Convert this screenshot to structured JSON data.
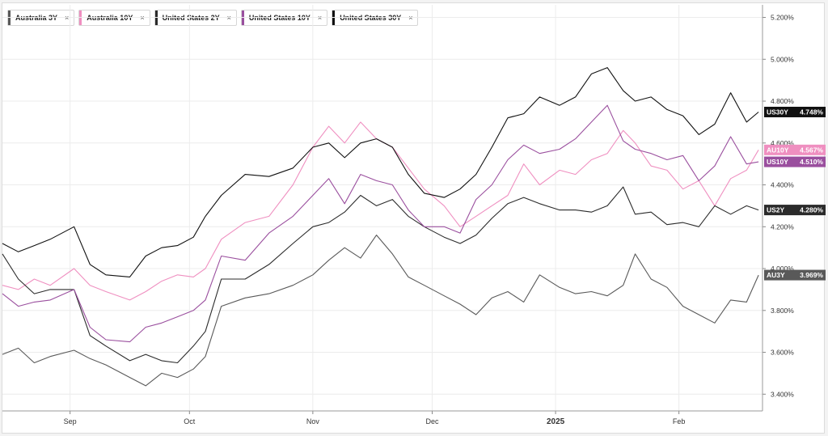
{
  "chart_data": {
    "type": "line",
    "title": "",
    "xlabel": "",
    "ylabel": "",
    "x_ticks": [
      {
        "label": "Sep",
        "date": "2024-09-01"
      },
      {
        "label": "Oct",
        "date": "2024-10-01"
      },
      {
        "label": "Nov",
        "date": "2024-11-01"
      },
      {
        "label": "Dec",
        "date": "2024-12-01"
      },
      {
        "label": "2025",
        "date": "2025-01-01"
      },
      {
        "label": "Feb",
        "date": "2025-02-01"
      }
    ],
    "x_range": [
      "2024-08-15",
      "2025-02-22"
    ],
    "y_ticks": [
      "3.400%",
      "3.600%",
      "3.800%",
      "4.000%",
      "4.200%",
      "4.400%",
      "4.600%",
      "4.800%",
      "5.000%",
      "5.200%"
    ],
    "ylim": [
      3.32,
      5.26
    ],
    "grid": true,
    "y_axis_side": "right",
    "legend_position": "top-left",
    "series": [
      {
        "name": "Australia 3Y",
        "tag": "AU3Y",
        "last": "3.969%",
        "color": "#595959",
        "points": [
          [
            "2024-08-15",
            3.59
          ],
          [
            "2024-08-19",
            3.62
          ],
          [
            "2024-08-23",
            3.55
          ],
          [
            "2024-08-27",
            3.58
          ],
          [
            "2024-09-02",
            3.61
          ],
          [
            "2024-09-06",
            3.57
          ],
          [
            "2024-09-10",
            3.54
          ],
          [
            "2024-09-16",
            3.48
          ],
          [
            "2024-09-20",
            3.44
          ],
          [
            "2024-09-24",
            3.5
          ],
          [
            "2024-09-28",
            3.48
          ],
          [
            "2024-10-02",
            3.52
          ],
          [
            "2024-10-05",
            3.58
          ],
          [
            "2024-10-09",
            3.82
          ],
          [
            "2024-10-15",
            3.86
          ],
          [
            "2024-10-21",
            3.88
          ],
          [
            "2024-10-27",
            3.92
          ],
          [
            "2024-11-01",
            3.97
          ],
          [
            "2024-11-05",
            4.04
          ],
          [
            "2024-11-09",
            4.1
          ],
          [
            "2024-11-13",
            4.05
          ],
          [
            "2024-11-17",
            4.16
          ],
          [
            "2024-11-21",
            4.07
          ],
          [
            "2024-11-25",
            3.96
          ],
          [
            "2024-11-29",
            3.92
          ],
          [
            "2024-12-04",
            3.87
          ],
          [
            "2024-12-08",
            3.83
          ],
          [
            "2024-12-12",
            3.78
          ],
          [
            "2024-12-16",
            3.86
          ],
          [
            "2024-12-20",
            3.89
          ],
          [
            "2024-12-24",
            3.84
          ],
          [
            "2024-12-28",
            3.97
          ],
          [
            "2025-01-02",
            3.91
          ],
          [
            "2025-01-06",
            3.88
          ],
          [
            "2025-01-10",
            3.89
          ],
          [
            "2025-01-14",
            3.87
          ],
          [
            "2025-01-18",
            3.92
          ],
          [
            "2025-01-21",
            4.07
          ],
          [
            "2025-01-25",
            3.95
          ],
          [
            "2025-01-29",
            3.91
          ],
          [
            "2025-02-02",
            3.82
          ],
          [
            "2025-02-06",
            3.78
          ],
          [
            "2025-02-10",
            3.74
          ],
          [
            "2025-02-14",
            3.85
          ],
          [
            "2025-02-18",
            3.84
          ],
          [
            "2025-02-21",
            3.969
          ]
        ]
      },
      {
        "name": "Australia 10Y",
        "tag": "AU10Y",
        "last": "4.567%",
        "color": "#ef8fc0",
        "points": [
          [
            "2024-08-15",
            3.92
          ],
          [
            "2024-08-19",
            3.9
          ],
          [
            "2024-08-23",
            3.95
          ],
          [
            "2024-08-27",
            3.92
          ],
          [
            "2024-09-02",
            4.0
          ],
          [
            "2024-09-06",
            3.92
          ],
          [
            "2024-09-10",
            3.89
          ],
          [
            "2024-09-16",
            3.85
          ],
          [
            "2024-09-20",
            3.89
          ],
          [
            "2024-09-24",
            3.94
          ],
          [
            "2024-09-28",
            3.97
          ],
          [
            "2024-10-02",
            3.96
          ],
          [
            "2024-10-05",
            4.0
          ],
          [
            "2024-10-09",
            4.14
          ],
          [
            "2024-10-15",
            4.22
          ],
          [
            "2024-10-21",
            4.25
          ],
          [
            "2024-10-27",
            4.4
          ],
          [
            "2024-11-01",
            4.58
          ],
          [
            "2024-11-05",
            4.68
          ],
          [
            "2024-11-09",
            4.6
          ],
          [
            "2024-11-13",
            4.7
          ],
          [
            "2024-11-17",
            4.62
          ],
          [
            "2024-11-21",
            4.58
          ],
          [
            "2024-11-25",
            4.48
          ],
          [
            "2024-11-29",
            4.38
          ],
          [
            "2024-12-04",
            4.3
          ],
          [
            "2024-12-08",
            4.2
          ],
          [
            "2024-12-12",
            4.25
          ],
          [
            "2024-12-16",
            4.3
          ],
          [
            "2024-12-20",
            4.35
          ],
          [
            "2024-12-24",
            4.5
          ],
          [
            "2024-12-28",
            4.4
          ],
          [
            "2025-01-02",
            4.47
          ],
          [
            "2025-01-06",
            4.45
          ],
          [
            "2025-01-10",
            4.52
          ],
          [
            "2025-01-14",
            4.55
          ],
          [
            "2025-01-18",
            4.66
          ],
          [
            "2025-01-21",
            4.6
          ],
          [
            "2025-01-25",
            4.49
          ],
          [
            "2025-01-29",
            4.47
          ],
          [
            "2025-02-02",
            4.38
          ],
          [
            "2025-02-06",
            4.42
          ],
          [
            "2025-02-10",
            4.3
          ],
          [
            "2025-02-14",
            4.43
          ],
          [
            "2025-02-18",
            4.47
          ],
          [
            "2025-02-21",
            4.567
          ]
        ]
      },
      {
        "name": "United States 2Y",
        "tag": "US2Y",
        "last": "4.280%",
        "color": "#2b2b2b",
        "points": [
          [
            "2024-08-15",
            4.07
          ],
          [
            "2024-08-19",
            3.95
          ],
          [
            "2024-08-23",
            3.88
          ],
          [
            "2024-08-27",
            3.9
          ],
          [
            "2024-09-02",
            3.9
          ],
          [
            "2024-09-06",
            3.68
          ],
          [
            "2024-09-10",
            3.63
          ],
          [
            "2024-09-16",
            3.56
          ],
          [
            "2024-09-20",
            3.59
          ],
          [
            "2024-09-24",
            3.56
          ],
          [
            "2024-09-28",
            3.55
          ],
          [
            "2024-10-02",
            3.63
          ],
          [
            "2024-10-05",
            3.7
          ],
          [
            "2024-10-09",
            3.95
          ],
          [
            "2024-10-15",
            3.95
          ],
          [
            "2024-10-21",
            4.02
          ],
          [
            "2024-10-27",
            4.12
          ],
          [
            "2024-11-01",
            4.2
          ],
          [
            "2024-11-05",
            4.22
          ],
          [
            "2024-11-09",
            4.27
          ],
          [
            "2024-11-13",
            4.35
          ],
          [
            "2024-11-17",
            4.3
          ],
          [
            "2024-11-21",
            4.33
          ],
          [
            "2024-11-25",
            4.25
          ],
          [
            "2024-11-29",
            4.2
          ],
          [
            "2024-12-04",
            4.15
          ],
          [
            "2024-12-08",
            4.12
          ],
          [
            "2024-12-12",
            4.16
          ],
          [
            "2024-12-16",
            4.24
          ],
          [
            "2024-12-20",
            4.31
          ],
          [
            "2024-12-24",
            4.34
          ],
          [
            "2024-12-28",
            4.31
          ],
          [
            "2025-01-02",
            4.28
          ],
          [
            "2025-01-06",
            4.28
          ],
          [
            "2025-01-10",
            4.27
          ],
          [
            "2025-01-14",
            4.3
          ],
          [
            "2025-01-18",
            4.39
          ],
          [
            "2025-01-21",
            4.26
          ],
          [
            "2025-01-25",
            4.27
          ],
          [
            "2025-01-29",
            4.21
          ],
          [
            "2025-02-02",
            4.22
          ],
          [
            "2025-02-06",
            4.2
          ],
          [
            "2025-02-10",
            4.3
          ],
          [
            "2025-02-14",
            4.26
          ],
          [
            "2025-02-18",
            4.3
          ],
          [
            "2025-02-21",
            4.28
          ]
        ]
      },
      {
        "name": "United States 10Y",
        "tag": "US10Y",
        "last": "4.510%",
        "color": "#9a4f9e",
        "points": [
          [
            "2024-08-15",
            3.88
          ],
          [
            "2024-08-19",
            3.82
          ],
          [
            "2024-08-23",
            3.84
          ],
          [
            "2024-08-27",
            3.85
          ],
          [
            "2024-09-02",
            3.9
          ],
          [
            "2024-09-06",
            3.72
          ],
          [
            "2024-09-10",
            3.66
          ],
          [
            "2024-09-16",
            3.65
          ],
          [
            "2024-09-20",
            3.72
          ],
          [
            "2024-09-24",
            3.74
          ],
          [
            "2024-09-28",
            3.77
          ],
          [
            "2024-10-02",
            3.8
          ],
          [
            "2024-10-05",
            3.85
          ],
          [
            "2024-10-09",
            4.06
          ],
          [
            "2024-10-15",
            4.04
          ],
          [
            "2024-10-21",
            4.17
          ],
          [
            "2024-10-27",
            4.25
          ],
          [
            "2024-11-01",
            4.35
          ],
          [
            "2024-11-05",
            4.43
          ],
          [
            "2024-11-09",
            4.31
          ],
          [
            "2024-11-13",
            4.45
          ],
          [
            "2024-11-17",
            4.42
          ],
          [
            "2024-11-21",
            4.4
          ],
          [
            "2024-11-25",
            4.28
          ],
          [
            "2024-11-29",
            4.2
          ],
          [
            "2024-12-04",
            4.2
          ],
          [
            "2024-12-08",
            4.17
          ],
          [
            "2024-12-12",
            4.33
          ],
          [
            "2024-12-16",
            4.4
          ],
          [
            "2024-12-20",
            4.52
          ],
          [
            "2024-12-24",
            4.59
          ],
          [
            "2024-12-28",
            4.55
          ],
          [
            "2025-01-02",
            4.57
          ],
          [
            "2025-01-06",
            4.62
          ],
          [
            "2025-01-10",
            4.7
          ],
          [
            "2025-01-14",
            4.78
          ],
          [
            "2025-01-18",
            4.61
          ],
          [
            "2025-01-21",
            4.57
          ],
          [
            "2025-01-25",
            4.55
          ],
          [
            "2025-01-29",
            4.52
          ],
          [
            "2025-02-02",
            4.54
          ],
          [
            "2025-02-06",
            4.42
          ],
          [
            "2025-02-10",
            4.49
          ],
          [
            "2025-02-14",
            4.63
          ],
          [
            "2025-02-18",
            4.5
          ],
          [
            "2025-02-21",
            4.51
          ]
        ]
      },
      {
        "name": "United States 30Y",
        "tag": "US30Y",
        "last": "4.748%",
        "color": "#111111",
        "points": [
          [
            "2024-08-15",
            4.12
          ],
          [
            "2024-08-19",
            4.08
          ],
          [
            "2024-08-23",
            4.11
          ],
          [
            "2024-08-27",
            4.14
          ],
          [
            "2024-09-02",
            4.2
          ],
          [
            "2024-09-06",
            4.02
          ],
          [
            "2024-09-10",
            3.97
          ],
          [
            "2024-09-16",
            3.96
          ],
          [
            "2024-09-20",
            4.06
          ],
          [
            "2024-09-24",
            4.1
          ],
          [
            "2024-09-28",
            4.11
          ],
          [
            "2024-10-02",
            4.15
          ],
          [
            "2024-10-05",
            4.25
          ],
          [
            "2024-10-09",
            4.35
          ],
          [
            "2024-10-15",
            4.45
          ],
          [
            "2024-10-21",
            4.44
          ],
          [
            "2024-10-27",
            4.48
          ],
          [
            "2024-11-01",
            4.58
          ],
          [
            "2024-11-05",
            4.6
          ],
          [
            "2024-11-09",
            4.53
          ],
          [
            "2024-11-13",
            4.6
          ],
          [
            "2024-11-17",
            4.62
          ],
          [
            "2024-11-21",
            4.58
          ],
          [
            "2024-11-25",
            4.45
          ],
          [
            "2024-11-29",
            4.36
          ],
          [
            "2024-12-04",
            4.34
          ],
          [
            "2024-12-08",
            4.38
          ],
          [
            "2024-12-12",
            4.45
          ],
          [
            "2024-12-16",
            4.58
          ],
          [
            "2024-12-20",
            4.72
          ],
          [
            "2024-12-24",
            4.74
          ],
          [
            "2024-12-28",
            4.82
          ],
          [
            "2025-01-02",
            4.78
          ],
          [
            "2025-01-06",
            4.82
          ],
          [
            "2025-01-10",
            4.93
          ],
          [
            "2025-01-14",
            4.96
          ],
          [
            "2025-01-18",
            4.85
          ],
          [
            "2025-01-21",
            4.8
          ],
          [
            "2025-01-25",
            4.82
          ],
          [
            "2025-01-29",
            4.76
          ],
          [
            "2025-02-02",
            4.73
          ],
          [
            "2025-02-06",
            4.64
          ],
          [
            "2025-02-10",
            4.69
          ],
          [
            "2025-02-14",
            4.84
          ],
          [
            "2025-02-18",
            4.7
          ],
          [
            "2025-02-21",
            4.748
          ]
        ]
      }
    ],
    "end_label_order": [
      "US30Y",
      "AU10Y",
      "US10Y",
      "US2Y",
      "AU3Y"
    ]
  },
  "legend": {
    "close_glyph": "×",
    "items": [
      {
        "label": "Australia 3Y",
        "color": "#595959"
      },
      {
        "label": "Australia 10Y",
        "color": "#ef8fc0"
      },
      {
        "label": "United States 2Y",
        "color": "#2b2b2b"
      },
      {
        "label": "United States 10Y",
        "color": "#9a4f9e"
      },
      {
        "label": "United States 30Y",
        "color": "#111111"
      }
    ]
  }
}
